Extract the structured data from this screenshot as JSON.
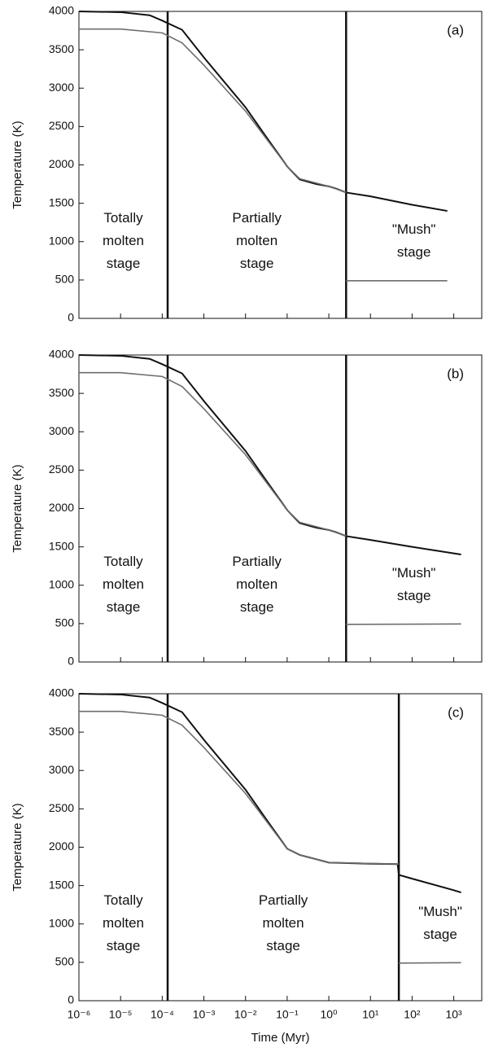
{
  "chart_data": [
    {
      "type": "line",
      "panel_label": "(a)",
      "y_label": "Temperature (K)",
      "xscale": "log",
      "xlim": [
        1e-06,
        4700
      ],
      "ylim": [
        0,
        4000
      ],
      "xticks": [
        1e-06,
        1e-05,
        0.0001,
        0.001,
        0.01,
        0.1,
        1,
        10,
        100,
        1000
      ],
      "yticks": [
        0,
        500,
        1000,
        1500,
        2000,
        2500,
        3000,
        3500,
        4000
      ],
      "vlines": [
        0.000135,
        2.6
      ],
      "annotations": [
        [
          "Totally",
          "molten",
          "stage"
        ],
        [
          "Partially",
          "molten",
          "stage"
        ],
        [
          "\"Mush\"",
          "stage"
        ]
      ],
      "series": [
        {
          "color": "#111111",
          "x": [
            1e-06,
            1e-05,
            5e-05,
            0.0001,
            0.0003,
            0.001,
            0.01,
            0.03,
            0.1,
            0.2,
            0.5,
            1,
            1.5,
            2.6,
            10,
            100,
            700
          ],
          "values": [
            4000,
            3990,
            3950,
            3880,
            3760,
            3400,
            2750,
            2380,
            1980,
            1810,
            1750,
            1720,
            1690,
            1640,
            1590,
            1480,
            1400
          ]
        },
        {
          "color": "#6e6e6e",
          "x": [
            1e-06,
            1e-05,
            0.0001,
            0.0003,
            0.001,
            0.01,
            0.1,
            0.2,
            1,
            2.6,
            2.6,
            2.6,
            700
          ],
          "values": [
            3770,
            3770,
            3720,
            3590,
            3300,
            2700,
            1980,
            1820,
            1720,
            1640,
            null,
            490,
            490
          ]
        }
      ]
    },
    {
      "type": "line",
      "panel_label": "(b)",
      "y_label": "Temperature (K)",
      "xscale": "log",
      "xlim": [
        1e-06,
        4700
      ],
      "ylim": [
        0,
        4000
      ],
      "xticks": [
        1e-06,
        1e-05,
        0.0001,
        0.001,
        0.01,
        0.1,
        1,
        10,
        100,
        1000
      ],
      "yticks": [
        0,
        500,
        1000,
        1500,
        2000,
        2500,
        3000,
        3500,
        4000
      ],
      "vlines": [
        0.000135,
        2.6
      ],
      "annotations": [
        [
          "Totally",
          "molten",
          "stage"
        ],
        [
          "Partially",
          "molten",
          "stage"
        ],
        [
          "\"Mush\"",
          "stage"
        ]
      ],
      "series": [
        {
          "color": "#111111",
          "x": [
            1e-06,
            1e-05,
            5e-05,
            0.0001,
            0.0003,
            0.001,
            0.01,
            0.03,
            0.1,
            0.2,
            0.5,
            1,
            1.5,
            2.6,
            10,
            100,
            1500
          ],
          "values": [
            4000,
            3990,
            3950,
            3880,
            3760,
            3400,
            2750,
            2380,
            1980,
            1810,
            1750,
            1720,
            1690,
            1640,
            1590,
            1500,
            1400
          ]
        },
        {
          "color": "#6e6e6e",
          "x": [
            1e-06,
            1e-05,
            0.0001,
            0.0003,
            0.001,
            0.01,
            0.1,
            0.2,
            1,
            2.6,
            2.6,
            2.6,
            1500
          ],
          "values": [
            3770,
            3770,
            3720,
            3590,
            3300,
            2700,
            1980,
            1820,
            1720,
            1640,
            null,
            490,
            495
          ]
        }
      ]
    },
    {
      "type": "line",
      "panel_label": "(c)",
      "y_label": "Temperature (K)",
      "x_label": "Time (Myr)",
      "xscale": "log",
      "xlim": [
        1e-06,
        4700
      ],
      "ylim": [
        0,
        4000
      ],
      "xticks": [
        {
          "value": 1e-06,
          "label": "10⁻⁶"
        },
        {
          "value": 1e-05,
          "label": "10⁻⁵"
        },
        {
          "value": 0.0001,
          "label": "10⁻⁴"
        },
        {
          "value": 0.001,
          "label": "10⁻³"
        },
        {
          "value": 0.01,
          "label": "10⁻²"
        },
        {
          "value": 0.1,
          "label": "10⁻¹"
        },
        {
          "value": 1,
          "label": "10⁰"
        },
        {
          "value": 10,
          "label": "10¹"
        },
        {
          "value": 100,
          "label": "10²"
        },
        {
          "value": 1000,
          "label": "10³"
        }
      ],
      "yticks": [
        0,
        500,
        1000,
        1500,
        2000,
        2500,
        3000,
        3500,
        4000
      ],
      "vlines": [
        0.000135,
        48
      ],
      "annotations": [
        [
          "Totally",
          "molten",
          "stage"
        ],
        [
          "Partially",
          "molten",
          "stage"
        ],
        [
          "\"Mush\"",
          "stage"
        ]
      ],
      "series": [
        {
          "color": "#111111",
          "x": [
            1e-06,
            1e-05,
            5e-05,
            0.0001,
            0.0003,
            0.001,
            0.01,
            0.03,
            0.1,
            0.2,
            1,
            10,
            45,
            48,
            100,
            1000,
            1500
          ],
          "values": [
            4000,
            3990,
            3950,
            3880,
            3760,
            3400,
            2750,
            2380,
            1980,
            1900,
            1800,
            1785,
            1780,
            1640,
            1590,
            1440,
            1410
          ]
        },
        {
          "color": "#6e6e6e",
          "x": [
            1e-06,
            1e-05,
            0.0001,
            0.0003,
            0.001,
            0.01,
            0.1,
            0.2,
            1,
            48,
            48,
            48,
            1500
          ],
          "values": [
            3770,
            3770,
            3720,
            3590,
            3300,
            2700,
            1980,
            1900,
            1800,
            1780,
            null,
            490,
            495
          ]
        }
      ]
    }
  ]
}
